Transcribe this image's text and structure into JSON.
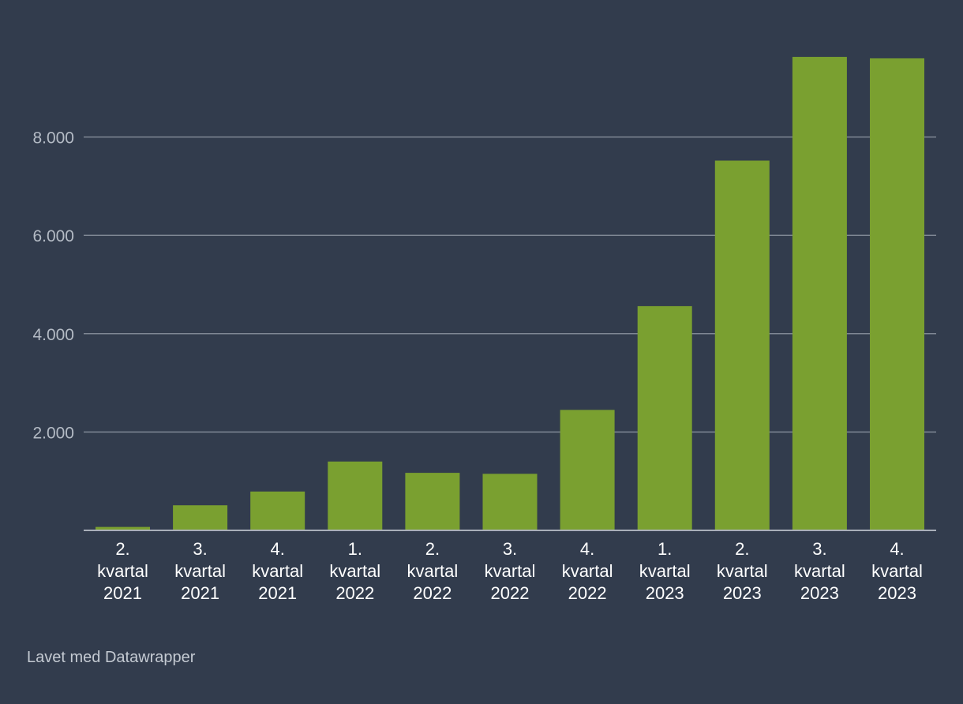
{
  "chart_data": {
    "type": "bar",
    "title": "",
    "xlabel": "",
    "ylabel": "",
    "ylim": [
      0,
      9600
    ],
    "yticks": [
      2000,
      4000,
      6000,
      8000
    ],
    "ytick_labels": [
      "2.000",
      "4.000",
      "6.000",
      "8.000"
    ],
    "grid": true,
    "categories": [
      [
        "2.",
        "kvartal",
        "2021"
      ],
      [
        "3.",
        "kvartal",
        "2021"
      ],
      [
        "4.",
        "kvartal",
        "2021"
      ],
      [
        "1.",
        "kvartal",
        "2022"
      ],
      [
        "2.",
        "kvartal",
        "2022"
      ],
      [
        "3.",
        "kvartal",
        "2022"
      ],
      [
        "4.",
        "kvartal",
        "2022"
      ],
      [
        "1.",
        "kvartal",
        "2023"
      ],
      [
        "2.",
        "kvartal",
        "2023"
      ],
      [
        "3.",
        "kvartal",
        "2023"
      ],
      [
        "4.",
        "kvartal",
        "2023"
      ]
    ],
    "values": [
      70,
      510,
      790,
      1400,
      1170,
      1150,
      2450,
      4560,
      7520,
      9630,
      9600
    ],
    "colors": {
      "bar": "#7aa030",
      "grid": "#7f8794",
      "axis": "#a9afb9",
      "background": "#323c4d"
    }
  },
  "footer": {
    "credit": "Lavet med Datawrapper"
  }
}
